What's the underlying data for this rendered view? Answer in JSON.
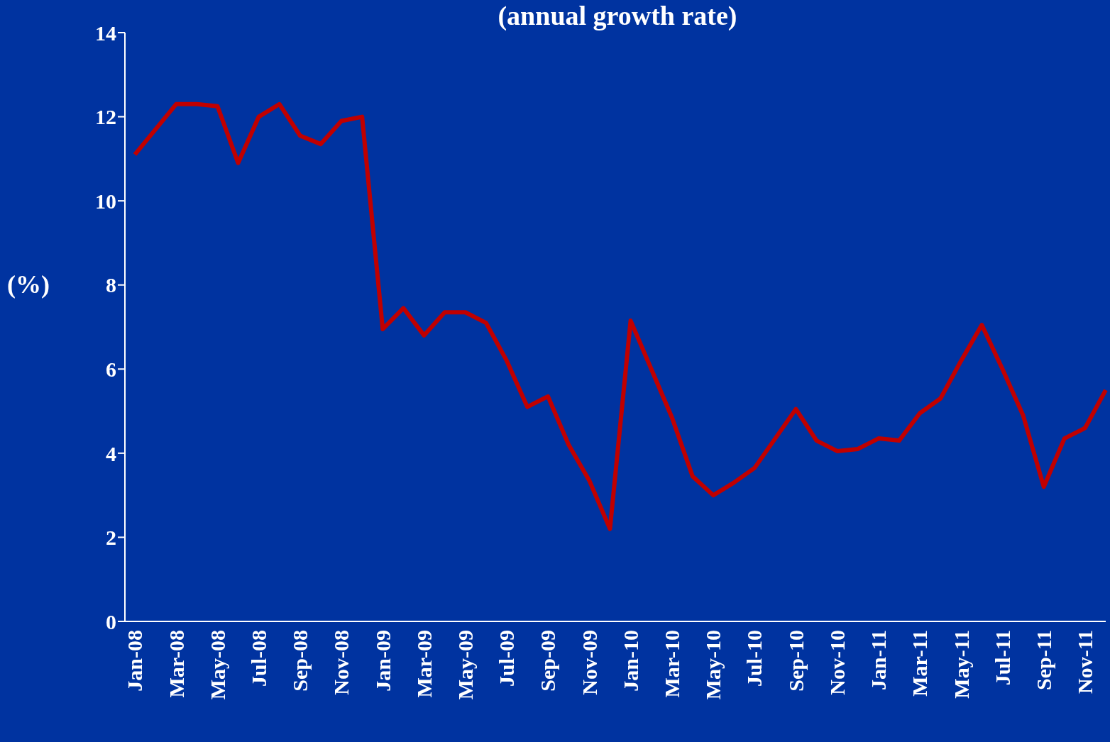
{
  "chart_data": {
    "type": "line",
    "title": "(annual growth rate)",
    "ylabel": "(%)",
    "categories": [
      "Jan-08",
      null,
      "Mar-08",
      null,
      "May-08",
      null,
      "Jul-08",
      null,
      "Sep-08",
      null,
      "Nov-08",
      null,
      "Jan-09",
      null,
      "Mar-09",
      null,
      "May-09",
      null,
      "Jul-09",
      null,
      "Sep-09",
      null,
      "Nov-09",
      null,
      "Jan-10",
      null,
      "Mar-10",
      null,
      "May-10",
      null,
      "Jul-10",
      null,
      "Sep-10",
      null,
      "Nov-10",
      null,
      "Jan-11",
      null,
      "Mar-11",
      null,
      "May-11",
      null,
      "Jul-11",
      null,
      "Sep-11",
      null,
      "Nov-11",
      null
    ],
    "series": [
      {
        "color": "#c00000",
        "values": [
          11.1,
          11.7,
          12.3,
          12.3,
          12.25,
          10.9,
          12.0,
          12.3,
          11.55,
          11.35,
          11.9,
          12.0,
          6.95,
          7.45,
          6.8,
          7.35,
          7.35,
          7.1,
          6.2,
          5.1,
          5.35,
          4.2,
          3.35,
          2.2,
          7.15,
          6.0,
          4.85,
          3.45,
          3.0,
          3.3,
          3.65,
          4.35,
          5.05,
          4.3,
          4.05,
          4.1,
          4.35,
          4.3,
          4.95,
          5.3,
          6.2,
          7.05,
          6.0,
          4.9,
          3.2,
          4.35,
          4.6,
          5.5
        ]
      }
    ],
    "ylim": [
      0,
      14
    ],
    "yticks": [
      0,
      2,
      4,
      6,
      8,
      10,
      12,
      14
    ],
    "grid": false,
    "legend": false,
    "marker": "none",
    "line_style": "solid"
  }
}
